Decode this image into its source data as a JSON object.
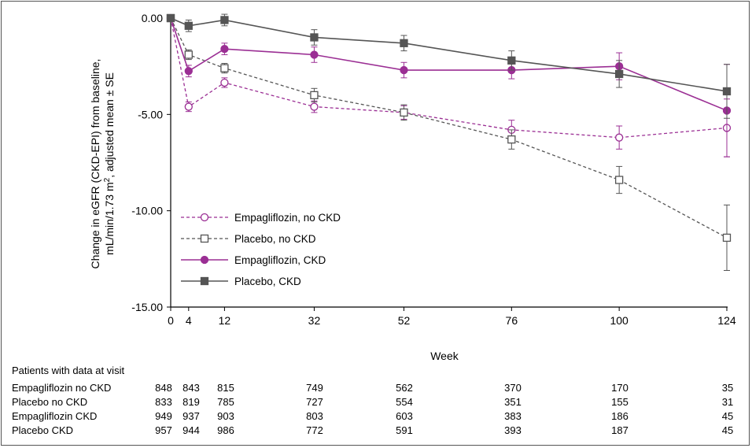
{
  "chart_data": {
    "type": "line",
    "ylabel_line1": "Change in eGFR (CKD-EPI) from baseline,",
    "ylabel_line2_pre": "mL/min/1.73 m",
    "ylabel_line2_sup": "2",
    "ylabel_line2_post": ", adjusted mean ± SE",
    "xlabel": "Week",
    "ylim": [
      -15,
      0
    ],
    "yticks": [
      0,
      -5,
      -10,
      -15
    ],
    "ytick_labels": [
      "0.00",
      "-5.00",
      "-10.00",
      "-15.00"
    ],
    "x": [
      0,
      4,
      12,
      32,
      52,
      76,
      100,
      124
    ],
    "xtick_labels": [
      "0",
      "4",
      "12",
      "32",
      "52",
      "76",
      "100",
      "124"
    ],
    "grid": false,
    "legend_position": "bottom-left",
    "series": [
      {
        "name": "Empagliflozin, no CKD",
        "color": "#9b2f94",
        "dashed": true,
        "marker": "open-circle",
        "values": [
          0,
          -4.6,
          -3.35,
          -4.6,
          -4.9,
          -5.8,
          -6.2,
          -5.7
        ],
        "se": [
          0,
          0.25,
          0.25,
          0.3,
          0.35,
          0.5,
          0.6,
          1.5
        ]
      },
      {
        "name": "Placebo, no CKD",
        "color": "#555555",
        "dashed": true,
        "marker": "open-square",
        "values": [
          0,
          -1.9,
          -2.6,
          -4.0,
          -4.9,
          -6.3,
          -8.4,
          -11.4
        ],
        "se": [
          0,
          0.25,
          0.25,
          0.35,
          0.4,
          0.5,
          0.7,
          1.7
        ]
      },
      {
        "name": "Empagliflozin, CKD",
        "color": "#9b2f94",
        "dashed": false,
        "marker": "filled-circle",
        "values": [
          0,
          -2.75,
          -1.6,
          -1.9,
          -2.7,
          -2.7,
          -2.5,
          -4.8
        ],
        "se": [
          0,
          0.3,
          0.3,
          0.4,
          0.4,
          0.45,
          0.7,
          2.4
        ]
      },
      {
        "name": "Placebo, CKD",
        "color": "#555555",
        "dashed": false,
        "marker": "filled-square",
        "values": [
          0,
          -0.4,
          -0.1,
          -1.0,
          -1.3,
          -2.2,
          -2.9,
          -3.8
        ],
        "se": [
          0,
          0.3,
          0.3,
          0.4,
          0.4,
          0.5,
          0.7,
          1.4
        ]
      }
    ]
  },
  "table": {
    "title": "Patients with data at visit",
    "rows": [
      {
        "label": "Empagliflozin no CKD",
        "values": [
          "848",
          "843",
          "815",
          "749",
          "562",
          "370",
          "170",
          "35"
        ]
      },
      {
        "label": "Placebo no CKD",
        "values": [
          "833",
          "819",
          "785",
          "727",
          "554",
          "351",
          "155",
          "31"
        ]
      },
      {
        "label": "Empagliflozin CKD",
        "values": [
          "949",
          "937",
          "903",
          "803",
          "603",
          "383",
          "186",
          "45"
        ]
      },
      {
        "label": "Placebo CKD",
        "values": [
          "957",
          "944",
          "986",
          "772",
          "591",
          "393",
          "187",
          "45"
        ]
      }
    ]
  }
}
